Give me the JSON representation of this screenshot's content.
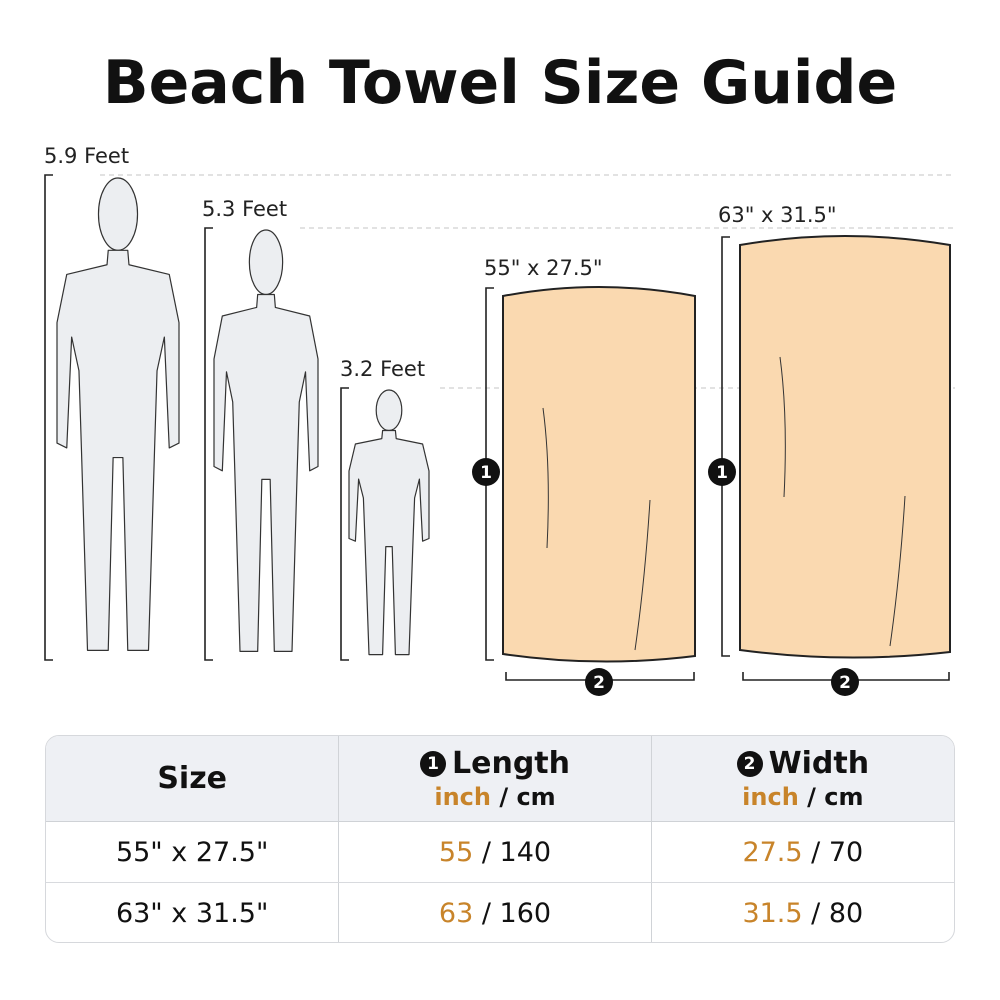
{
  "title": "Beach Towel Size Guide",
  "heights": [
    {
      "label": "5.9 Feet",
      "figure": "man"
    },
    {
      "label": "5.3 Feet",
      "figure": "woman"
    },
    {
      "label": "3.2 Feet",
      "figure": "child"
    }
  ],
  "towels": [
    {
      "label": "55\" x 27.5\"",
      "length_marker": "1",
      "width_marker": "2"
    },
    {
      "label": "63\" x 31.5\"",
      "length_marker": "1",
      "width_marker": "2"
    }
  ],
  "table": {
    "headers": {
      "size": "Size",
      "length": {
        "marker": "1",
        "label": "Length",
        "unit_primary": "inch",
        "separator": " / ",
        "unit_secondary": "cm"
      },
      "width": {
        "marker": "2",
        "label": "Width",
        "unit_primary": "inch",
        "separator": " / ",
        "unit_secondary": "cm"
      }
    },
    "rows": [
      {
        "size": "55\" x 27.5\"",
        "length_in": "55",
        "length_cm": "140",
        "width_in": "27.5",
        "width_cm": "70"
      },
      {
        "size": "63\" x 31.5\"",
        "length_in": "63",
        "length_cm": "160",
        "width_in": "31.5",
        "width_cm": "80"
      }
    ]
  },
  "colors": {
    "accent": "#c8842a",
    "towel": "#fad9b0",
    "figure": "#eceef1",
    "header_bg": "#eef0f4"
  }
}
